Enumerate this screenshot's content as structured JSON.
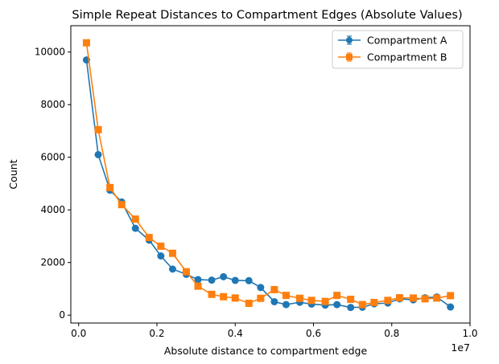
{
  "chart_data": {
    "type": "line",
    "title": "Simple Repeat Distances to Compartment Edges (Absolute Values)",
    "xlabel": "Absolute distance to compartment edge",
    "ylabel": "Count",
    "x_offset_label": "1e7",
    "xlim": [
      -0.02,
      1.0
    ],
    "ylim": [
      -300,
      11000
    ],
    "x_ticks": [
      0.0,
      0.2,
      0.4,
      0.6,
      0.8,
      1.0
    ],
    "x_tick_labels": [
      "0.0",
      "0.2",
      "0.4",
      "0.6",
      "0.8",
      "1.0"
    ],
    "y_ticks": [
      0,
      2000,
      4000,
      6000,
      8000,
      10000
    ],
    "y_tick_labels": [
      "0",
      "2000",
      "4000",
      "6000",
      "8000",
      "10000"
    ],
    "grid": false,
    "legend_position": "top-right",
    "x": [
      0.02,
      0.05,
      0.08,
      0.11,
      0.145,
      0.18,
      0.21,
      0.24,
      0.275,
      0.305,
      0.34,
      0.37,
      0.4,
      0.435,
      0.465,
      0.5,
      0.53,
      0.565,
      0.595,
      0.63,
      0.66,
      0.695,
      0.725,
      0.755,
      0.79,
      0.82,
      0.855,
      0.885,
      0.915,
      0.95
    ],
    "series": [
      {
        "name": "Compartment A",
        "color": "#1f77b4",
        "marker": "circle",
        "values": [
          9700,
          6100,
          4750,
          4300,
          3300,
          2850,
          2250,
          1750,
          1550,
          1350,
          1330,
          1460,
          1320,
          1310,
          1050,
          510,
          400,
          490,
          420,
          380,
          400,
          290,
          300,
          430,
          460,
          620,
          580,
          660,
          690,
          310
        ]
      },
      {
        "name": "Compartment B",
        "color": "#ff7f0e",
        "marker": "square",
        "values": [
          10350,
          7050,
          4850,
          4200,
          3650,
          2950,
          2620,
          2350,
          1650,
          1100,
          790,
          700,
          650,
          450,
          640,
          970,
          750,
          640,
          560,
          520,
          750,
          600,
          400,
          480,
          560,
          660,
          650,
          620,
          650,
          740
        ]
      }
    ]
  }
}
